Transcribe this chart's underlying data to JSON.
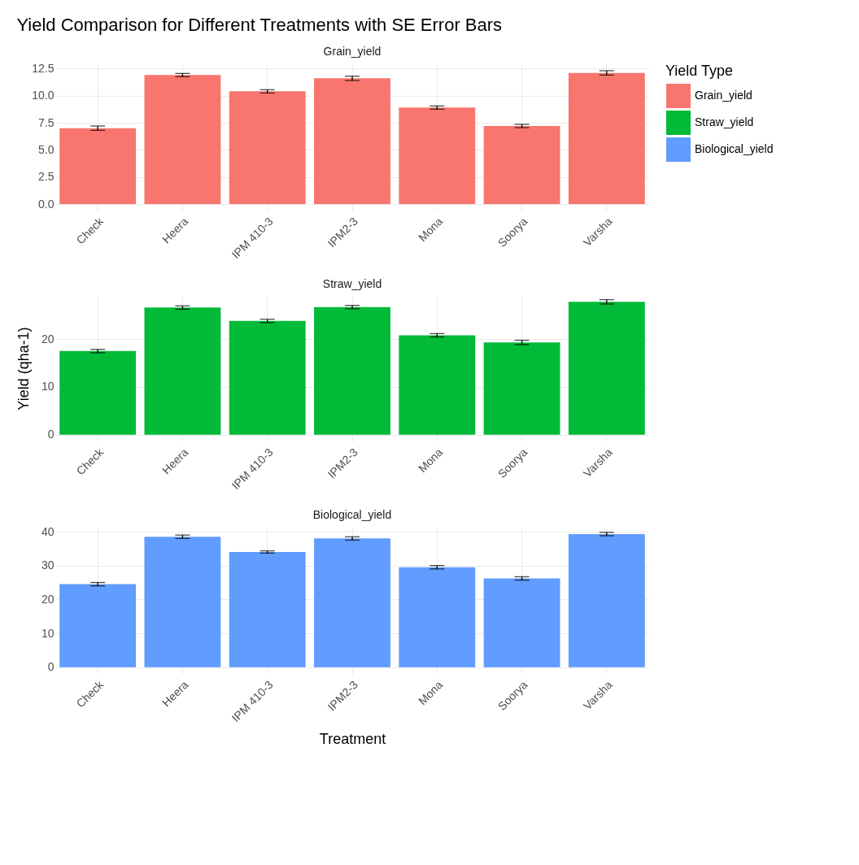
{
  "chart_data": [
    {
      "type": "bar",
      "title": "Yield Comparison for Different Treatments with SE Error Bars",
      "subtitle": "Grain_yield",
      "categories": [
        "Check",
        "Heera",
        "IPM 410-3",
        "IPM2-3",
        "Mona",
        "Soorya",
        "Varsha"
      ],
      "series": [
        {
          "name": "Grain_yield",
          "color": "#f8766d",
          "values": [
            7.0,
            11.9,
            10.4,
            11.6,
            8.9,
            7.2,
            12.1
          ],
          "errors": [
            0.2,
            0.15,
            0.15,
            0.2,
            0.15,
            0.15,
            0.2
          ]
        }
      ],
      "ylim": [
        -0.6,
        12.9
      ],
      "yticks": [
        {
          "value": 0,
          "label": "0.0"
        },
        2.5,
        {
          "value": 5,
          "label": "5.0"
        },
        7.5,
        {
          "value": 10,
          "label": "10.0"
        },
        12.5
      ],
      "grid": true
    },
    {
      "type": "bar",
      "subtitle": "Straw_yield",
      "ylabel": "Yield (qha-1)",
      "legend_title": "Yield Type",
      "legend": "right",
      "categories": [
        "Check",
        "Heera",
        "IPM 410-3",
        "IPM2-3",
        "Mona",
        "Soorya",
        "Varsha"
      ],
      "series": [
        {
          "name": "Straw_yield",
          "color": "#00ba38",
          "values": [
            17.5,
            26.6,
            23.8,
            26.7,
            20.8,
            19.3,
            27.8
          ],
          "errors": [
            0.35,
            0.35,
            0.35,
            0.35,
            0.35,
            0.45,
            0.45
          ]
        }
      ],
      "ylim": [
        -1.4,
        29.2
      ],
      "yticks": [
        0,
        10,
        20
      ],
      "grid": true
    },
    {
      "type": "bar",
      "subtitle": "Biological_yield",
      "xlabel": "Treatment",
      "categories": [
        "Check",
        "Heera",
        "IPM 410-3",
        "IPM2-3",
        "Mona",
        "Soorya",
        "Varsha"
      ],
      "series": [
        {
          "name": "Biological_yield",
          "color": "#619cff",
          "values": [
            24.5,
            38.5,
            34.0,
            38.0,
            29.5,
            26.2,
            39.3
          ],
          "errors": [
            0.5,
            0.5,
            0.35,
            0.5,
            0.5,
            0.5,
            0.5
          ]
        }
      ],
      "ylim": [
        -2.0,
        41.2
      ],
      "yticks": [
        0,
        10,
        20,
        30,
        40
      ],
      "grid": true
    }
  ]
}
